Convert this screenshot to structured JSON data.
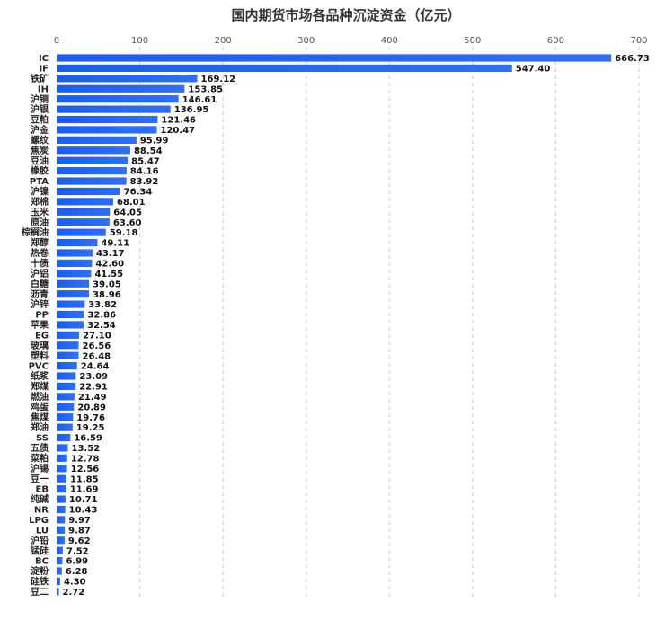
{
  "chart_data": {
    "type": "bar",
    "orientation": "horizontal",
    "title": "国内期货市场各品种沉淀资金（亿元）",
    "xlabel": "",
    "ylabel": "",
    "xlim": [
      0,
      700
    ],
    "xticks": [
      "0",
      "100",
      "200",
      "300",
      "400",
      "500",
      "600",
      "700"
    ],
    "grid": true,
    "bar_color": "#1a5ef0",
    "categories": [
      "IC",
      "IF",
      "铁矿",
      "IH",
      "沪铜",
      "沪银",
      "豆粕",
      "沪金",
      "螺纹",
      "焦炭",
      "豆油",
      "橡胶",
      "PTA",
      "沪镍",
      "郑棉",
      "玉米",
      "原油",
      "棕榈油",
      "郑醇",
      "热卷",
      "十债",
      "沪铝",
      "白糖",
      "沥青",
      "沪锌",
      "PP",
      "苹果",
      "EG",
      "玻璃",
      "塑料",
      "PVC",
      "纸浆",
      "郑煤",
      "燃油",
      "鸡蛋",
      "焦煤",
      "郑油",
      "SS",
      "五债",
      "菜粕",
      "沪锡",
      "豆一",
      "EB",
      "纯碱",
      "NR",
      "LPG",
      "LU",
      "沪铅",
      "锰硅",
      "BC",
      "淀粉",
      "硅铁",
      "豆二"
    ],
    "values": [
      666.73,
      547.4,
      169.12,
      153.85,
      146.61,
      136.95,
      121.46,
      120.47,
      95.99,
      88.54,
      85.47,
      84.16,
      83.92,
      76.34,
      68.01,
      64.05,
      63.6,
      59.18,
      49.11,
      43.17,
      42.6,
      41.55,
      39.05,
      38.96,
      33.82,
      32.86,
      32.54,
      27.1,
      26.56,
      26.48,
      24.64,
      23.09,
      22.91,
      21.49,
      20.89,
      19.76,
      19.25,
      16.59,
      13.52,
      12.78,
      12.56,
      11.85,
      11.69,
      10.71,
      10.43,
      9.97,
      9.87,
      9.62,
      7.52,
      6.99,
      6.28,
      4.3,
      2.72
    ],
    "value_labels": [
      "666.73",
      "547.40",
      "169.12",
      "153.85",
      "146.61",
      "136.95",
      "121.46",
      "120.47",
      "95.99",
      "88.54",
      "85.47",
      "84.16",
      "83.92",
      "76.34",
      "68.01",
      "64.05",
      "63.60",
      "59.18",
      "49.11",
      "43.17",
      "42.60",
      "41.55",
      "39.05",
      "38.96",
      "33.82",
      "32.86",
      "32.54",
      "27.10",
      "26.56",
      "26.48",
      "24.64",
      "23.09",
      "22.91",
      "21.49",
      "20.89",
      "19.76",
      "19.25",
      "16.59",
      "13.52",
      "12.78",
      "12.56",
      "11.85",
      "11.69",
      "10.71",
      "10.43",
      "9.97",
      "9.87",
      "9.62",
      "7.52",
      "6.99",
      "6.28",
      "4.30",
      "2.72"
    ]
  }
}
